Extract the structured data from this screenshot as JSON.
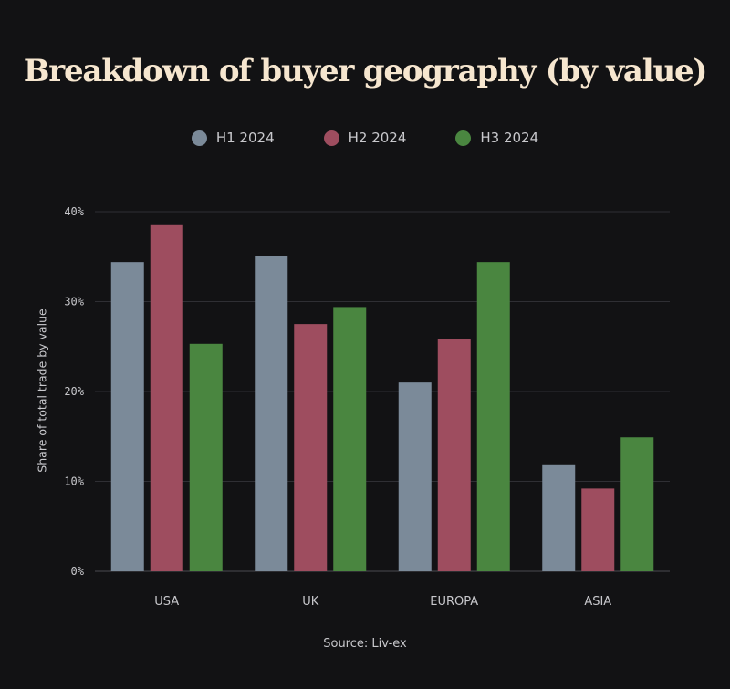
{
  "chart_data": {
    "type": "bar",
    "title": "Breakdown of buyer geography (by value)",
    "xlabel": "",
    "ylabel": "Share of total trade by value",
    "ylim": [
      0,
      40
    ],
    "yticks": [
      0,
      10,
      20,
      30,
      40
    ],
    "ytick_labels": [
      "0%",
      "10%",
      "20%",
      "30%",
      "40%"
    ],
    "grid": true,
    "legend_position": "top-center",
    "categories": [
      "USA",
      "UK",
      "EUROPA",
      "ASIA"
    ],
    "series": [
      {
        "name": "H1 2024",
        "color": "#7b8a99",
        "values": [
          34.4,
          35.1,
          21.0,
          11.9
        ]
      },
      {
        "name": "H2 2024",
        "color": "#9e4d5f",
        "values": [
          38.5,
          27.5,
          25.8,
          9.2
        ]
      },
      {
        "name": "H3 2024",
        "color": "#4a8640",
        "values": [
          25.3,
          29.4,
          34.4,
          14.9
        ]
      }
    ],
    "source": "Source: Liv-ex"
  }
}
